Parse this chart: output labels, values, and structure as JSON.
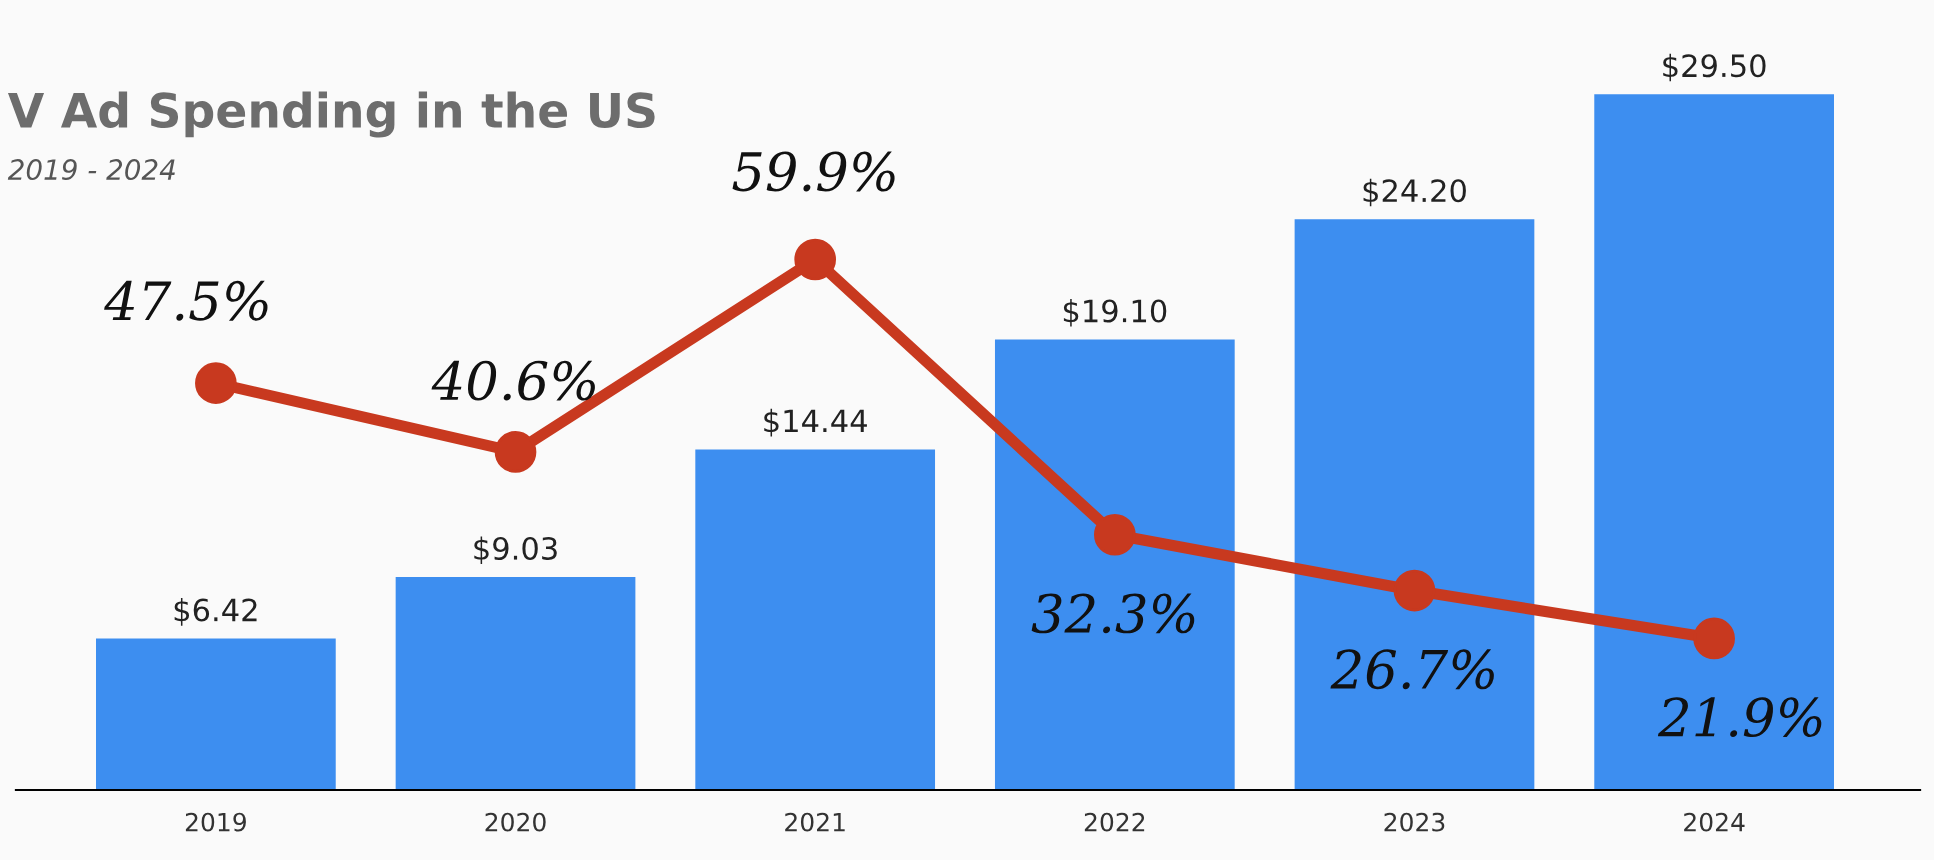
{
  "chart_data": {
    "type": "bar",
    "title": "V Ad Spending in the US",
    "subtitle": "2019 - 2024",
    "categories": [
      "2019",
      "2020",
      "2021",
      "2022",
      "2023",
      "2024"
    ],
    "tick_labels": "x",
    "grid": false,
    "series": [
      {
        "color": "#3d8ef0",
        "values": [
          6.42,
          9.03,
          14.44,
          19.1,
          24.2,
          29.5
        ],
        "value_labels": [
          "$6.42",
          "$9.03",
          "$14.44",
          "$19.10",
          "$24.20",
          "$29.50"
        ]
      },
      {
        "type": "line",
        "axis": "y2",
        "color": "#c8391f",
        "marker": "circle",
        "line_style": "solid",
        "values": [
          47.5,
          40.6,
          59.9,
          32.3,
          26.7,
          21.9
        ],
        "value_labels": [
          "47.5%",
          "40.6%",
          "59.9%",
          "32.3%",
          "26.7%",
          "21.9%"
        ]
      }
    ]
  }
}
